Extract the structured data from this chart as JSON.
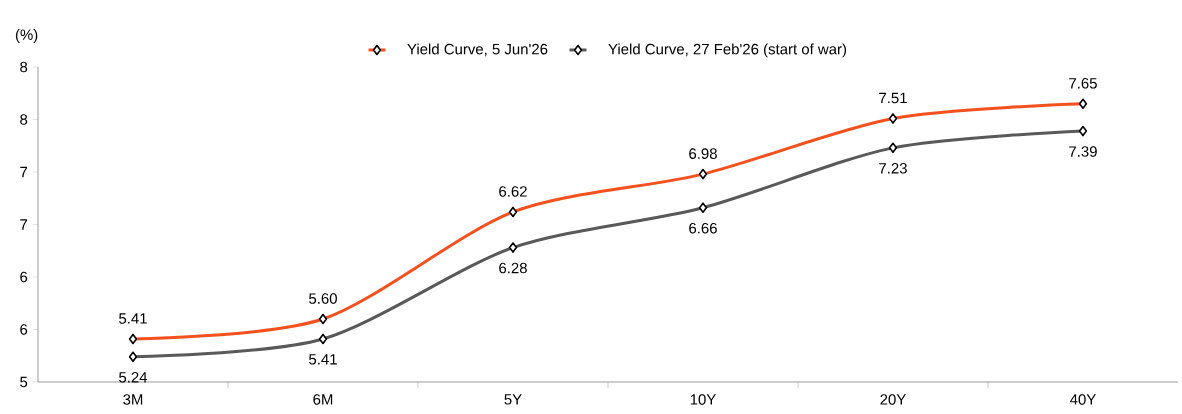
{
  "chart_data": {
    "type": "line",
    "ylabel": "(%)",
    "categories": [
      "3M",
      "6M",
      "5Y",
      "10Y",
      "20Y",
      "40Y"
    ],
    "series": [
      {
        "name": "Yield Curve, 5 Jun'26",
        "color": "#f4511e",
        "values": [
          5.41,
          5.6,
          6.62,
          6.98,
          7.51,
          7.65
        ],
        "value_labels": [
          "5.41",
          "5.60",
          "6.62",
          "6.98",
          "7.51",
          "7.65"
        ]
      },
      {
        "name": "Yield Curve, 27 Feb'26 (start of war)",
        "color": "#595959",
        "values": [
          5.24,
          5.41,
          6.28,
          6.66,
          7.23,
          7.39
        ],
        "value_labels": [
          "5.24",
          "5.41",
          "6.28",
          "6.66",
          "7.23",
          "7.39"
        ]
      }
    ],
    "ylim": [
      5,
      8
    ],
    "yticks": [
      5,
      {
        "value": 5.5,
        "label": "6"
      },
      6,
      {
        "value": 6.5,
        "label": "7"
      },
      7,
      {
        "value": 7.5,
        "label": "8"
      },
      8
    ],
    "legend": "top",
    "marker": "diamond",
    "line_style": "solid"
  }
}
